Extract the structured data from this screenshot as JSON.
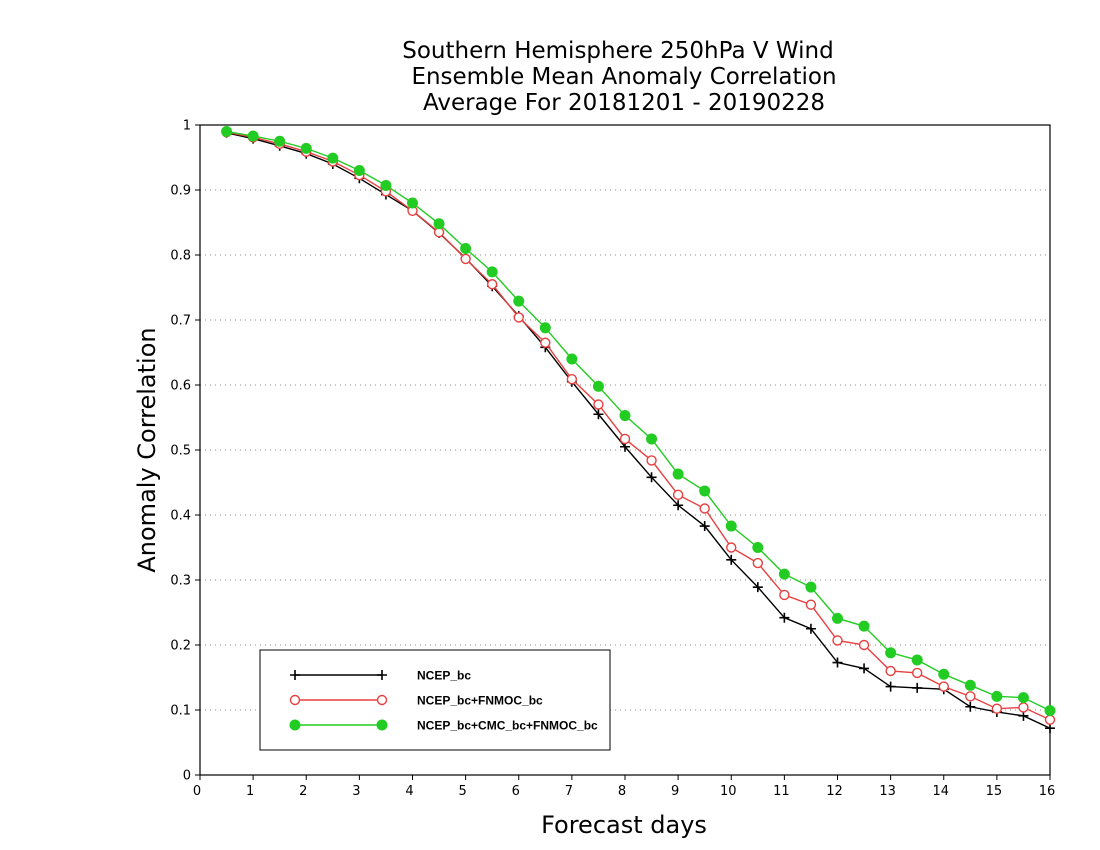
{
  "chart_data": {
    "type": "line",
    "title_lines": [
      "Southern Hemisphere 250hPa V Wind",
      "Ensemble Mean Anomaly Correlation",
      "Average For 20181201 - 20190228"
    ],
    "xlabel": "Forecast days",
    "ylabel": "Anomaly Correlation",
    "xlim": [
      0,
      16
    ],
    "ylim": [
      0,
      1
    ],
    "x_ticks": [
      0,
      1,
      2,
      3,
      4,
      5,
      6,
      7,
      8,
      9,
      10,
      11,
      12,
      13,
      14,
      15,
      16
    ],
    "y_ticks": [
      "0",
      "0.1",
      "0.2",
      "0.3",
      "0.4",
      "0.5",
      "0.6",
      "0.7",
      "0.8",
      "0.9",
      "1"
    ],
    "grid": "horizontal dotted",
    "legend_position": "bottom-left",
    "x": [
      0.5,
      1,
      1.5,
      2,
      2.5,
      3,
      3.5,
      4,
      4.5,
      5,
      5.5,
      6,
      6.5,
      7,
      7.5,
      8,
      8.5,
      9,
      9.5,
      10,
      10.5,
      11,
      11.5,
      12,
      12.5,
      13,
      13.5,
      14,
      14.5,
      15,
      15.5,
      16
    ],
    "series": [
      {
        "name": "NCEP_bc",
        "color": "#000000",
        "marker": "plus",
        "values": [
          0.988,
          0.979,
          0.968,
          0.956,
          0.94,
          0.918,
          0.893,
          0.868,
          0.834,
          0.795,
          0.752,
          0.706,
          0.658,
          0.605,
          0.555,
          0.505,
          0.458,
          0.415,
          0.383,
          0.331,
          0.289,
          0.242,
          0.225,
          0.173,
          0.164,
          0.136,
          0.134,
          0.132,
          0.105,
          0.097,
          0.091,
          0.072
        ]
      },
      {
        "name": "NCEP_bc+FNMOC_bc",
        "color": "#e84040",
        "marker": "open-circle",
        "values": [
          0.989,
          0.981,
          0.971,
          0.959,
          0.944,
          0.923,
          0.898,
          0.868,
          0.835,
          0.794,
          0.755,
          0.704,
          0.665,
          0.609,
          0.57,
          0.517,
          0.484,
          0.431,
          0.41,
          0.35,
          0.326,
          0.277,
          0.262,
          0.207,
          0.2,
          0.16,
          0.157,
          0.136,
          0.121,
          0.102,
          0.104,
          0.085
        ]
      },
      {
        "name": "NCEP_bc+CMC_bc+FNMOC_bc",
        "color": "#22cc22",
        "marker": "filled-circle",
        "values": [
          0.99,
          0.983,
          0.975,
          0.964,
          0.949,
          0.93,
          0.907,
          0.88,
          0.848,
          0.81,
          0.774,
          0.729,
          0.688,
          0.64,
          0.598,
          0.553,
          0.517,
          0.463,
          0.437,
          0.383,
          0.35,
          0.309,
          0.289,
          0.241,
          0.229,
          0.188,
          0.177,
          0.155,
          0.138,
          0.121,
          0.119,
          0.099
        ]
      }
    ]
  }
}
